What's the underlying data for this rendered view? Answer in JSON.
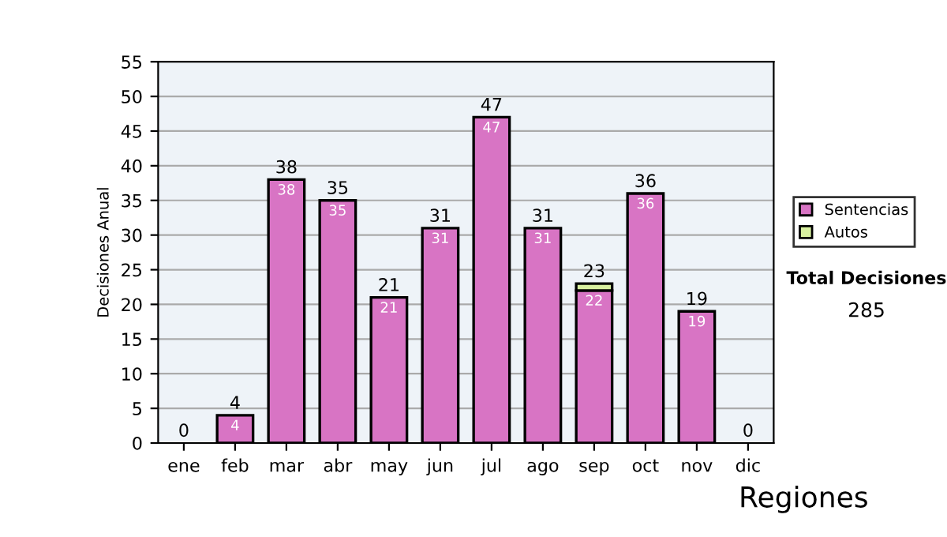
{
  "chart_data": {
    "type": "bar",
    "ylabel": "Decisiones Anual",
    "categories": [
      "ene",
      "feb",
      "mar",
      "abr",
      "may",
      "jun",
      "jul",
      "ago",
      "sep",
      "oct",
      "nov",
      "dic"
    ],
    "series": [
      {
        "name": "Sentencias",
        "color": "#d874c4",
        "values": [
          0,
          4,
          38,
          35,
          21,
          31,
          47,
          31,
          22,
          36,
          19,
          0
        ],
        "value_labels": [
          null,
          "4",
          "38",
          "35",
          "21",
          "31",
          "47",
          "31",
          "22",
          "36",
          "19",
          null
        ]
      },
      {
        "name": "Autos",
        "color": "#d8f0a0",
        "values": [
          0,
          0,
          0,
          0,
          0,
          0,
          0,
          0,
          1,
          0,
          0,
          0
        ]
      }
    ],
    "stacked": true,
    "totals": [
      "0",
      "4",
      "38",
      "35",
      "21",
      "31",
      "47",
      "31",
      "23",
      "36",
      "19",
      "0"
    ],
    "ylim": [
      0,
      55
    ],
    "yticks": [
      0,
      5,
      10,
      15,
      20,
      25,
      30,
      35,
      40,
      45,
      50,
      55
    ],
    "grid": "y",
    "legend": "right",
    "annotations": [
      "Total Decisiones",
      "285",
      "Regiones"
    ]
  }
}
